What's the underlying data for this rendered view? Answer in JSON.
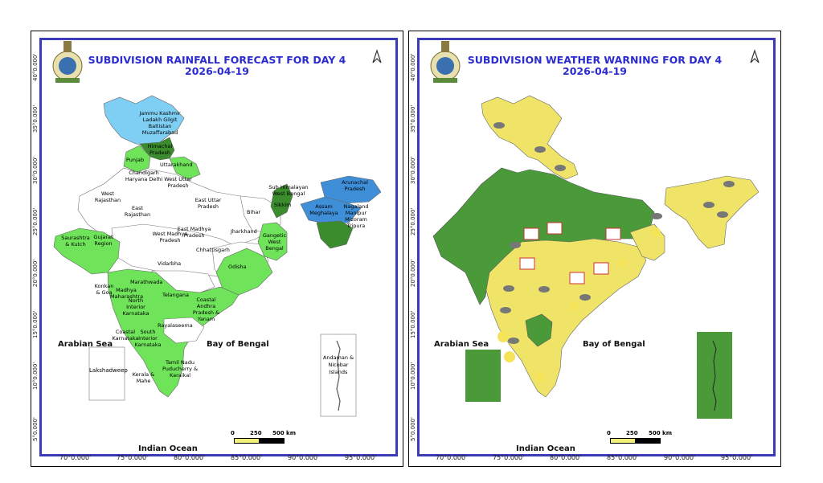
{
  "left_panel": {
    "title": "SUBDIVISION RAINFALL FORECAST FOR DAY 4",
    "date": "2026-04-19",
    "lat_labels": [
      "40°0.000'",
      "35°0.000'",
      "30°0.000'",
      "25°0.000'",
      "20°0.000'",
      "15°0.000'",
      "10°0.000'",
      "5°0.000'"
    ],
    "lon_labels": [
      "70°0.000'",
      "75°0.000'",
      "80°0.000'",
      "85°0.000'",
      "90°0.000'",
      "95°0.000'"
    ],
    "seas": {
      "arabian": "Arabian Sea",
      "bengal": "Bay of Bengal",
      "indian": "Indian Ocean"
    },
    "scale": {
      "zero": "0",
      "mid": "250",
      "max": "500 km"
    },
    "inset_labels": {
      "lakshadweep": "Lakshadweep",
      "andaman": "Andaman & Nicobar Islands"
    },
    "subdivisions": {
      "jk": "Jammu Kashmir Ladakh Gilgit Baltistan Muzaffarabad",
      "hp": "Himachal Pradesh",
      "punjab": "Punjab",
      "uk": "Uttarakhand",
      "chd": "Chandigarh Haryana Delhi",
      "wup": "West Uttar Pradesh",
      "wraj": "West Rajasthan",
      "eraj": "East Rajasthan",
      "eup": "East Uttar Pradesh",
      "bihar": "Bihar",
      "shwb": "Sub Himalayan West Bengal",
      "sikkim": "Sikkim",
      "arunachal": "Arunachal Pradesh",
      "assam": "Assam Meghalaya",
      "nmmt": "Nagaland Manipur Mizoram Tripura",
      "jharkhand": "Jharkhand",
      "gwb": "Gangetic West Bengal",
      "saurashtra": "Saurashtra & Kutch",
      "gujarat": "Gujarat Region",
      "wmp": "West Madhya Pradesh",
      "emp": "East Madhya Pradesh",
      "odisha": "Odisha",
      "chhattisgarh": "Chhattisgarh",
      "vidarbha": "Vidarbha",
      "marathwada": "Marathwada",
      "konkan": "Konkan & Goa",
      "mm": "Madhya Maharashtra",
      "nik": "North Interior Karnataka",
      "telangana": "Telangana",
      "cap": "Coastal Andhra Pradesh & Yanam",
      "rayalaseema": "Rayalaseema",
      "ck": "Coastal Karnataka",
      "sik": "South Interior Karnataka",
      "tn": "Tamil Nadu Puducherry & Karaikal",
      "kerala": "Kerala & Mahe"
    }
  },
  "right_panel": {
    "title": "SUBDIVISION WEATHER WARNING FOR DAY 4",
    "date": "2026-04-19",
    "lat_labels": [
      "40°0.000'",
      "35°0.000'",
      "30°0.000'",
      "25°0.000'",
      "20°0.000'",
      "15°0.000'",
      "10°0.000'",
      "5°0.000'"
    ],
    "lon_labels": [
      "70°0.000'",
      "75°0.000'",
      "80°0.000'",
      "85°0.000'",
      "90°0.000'",
      "95°0.000'"
    ],
    "seas": {
      "arabian": "Arabian Sea",
      "bengal": "Bay of Bengal",
      "indian": "Indian Ocean"
    },
    "scale": {
      "zero": "0",
      "mid": "250",
      "max": "500 km"
    }
  },
  "colors": {
    "frame": "#3b3bb8",
    "title": "#2b2bd0",
    "rain_green": "#6fe35a",
    "rain_dark": "#3a8c2c",
    "rain_lightblue": "#7fcff5",
    "rain_blue": "#3f8fd8",
    "warn_green": "#4a9a3a",
    "warn_yellow": "#f0e468"
  }
}
